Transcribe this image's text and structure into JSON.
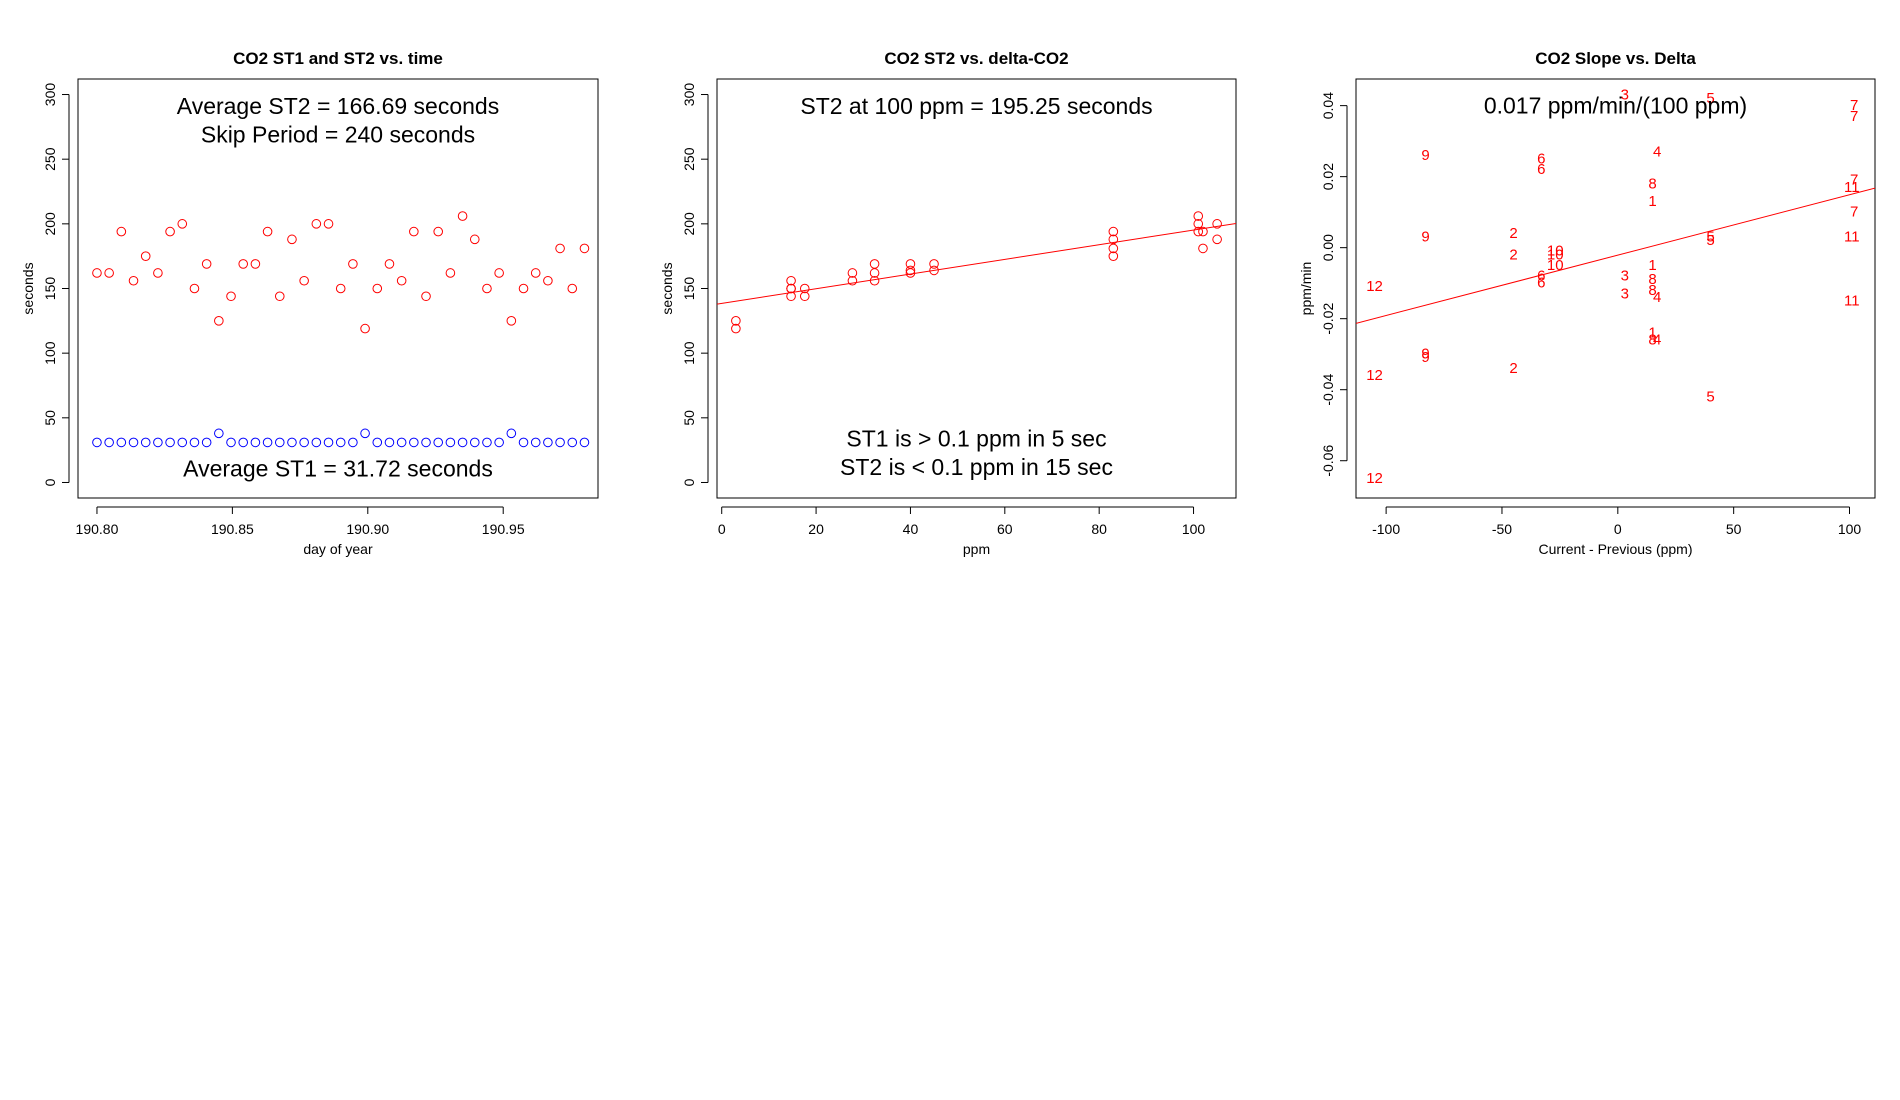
{
  "colors": {
    "st2": "#ff0000",
    "st1": "#0000ff",
    "fit": "#ff0000",
    "axis": "#000000"
  },
  "chart_data": [
    {
      "type": "scatter",
      "title": "CO2 ST1 and ST2 vs. time",
      "xlabel": "day of year",
      "ylabel": "seconds",
      "xlim": [
        190.793,
        190.985
      ],
      "ylim": [
        -12,
        312
      ],
      "xticks": [
        190.8,
        190.85,
        190.9,
        190.95
      ],
      "xtick_labels": [
        "190.80",
        "190.85",
        "190.90",
        "190.95"
      ],
      "yticks": [
        0,
        50,
        100,
        150,
        200,
        250,
        300
      ],
      "ytick_labels": [
        "0",
        "50",
        "100",
        "150",
        "200",
        "250",
        "300"
      ],
      "annotations": [
        {
          "text": "Average ST2 =  166.69  seconds",
          "x": 190.889,
          "y": 291
        },
        {
          "text": "Skip Period =  240  seconds",
          "x": 190.889,
          "y": 269
        },
        {
          "text": "Average ST1 =  31.72  seconds",
          "x": 190.889,
          "y": 11
        }
      ],
      "series": [
        {
          "name": "ST2",
          "color": "#ff0000",
          "x": [
            190.8,
            190.8045,
            190.809,
            190.8135,
            190.818,
            190.8225,
            190.827,
            190.8315,
            190.836,
            190.8405,
            190.845,
            190.8495,
            190.854,
            190.8585,
            190.863,
            190.8675,
            190.872,
            190.8765,
            190.881,
            190.8855,
            190.89,
            190.8945,
            190.899,
            190.9035,
            190.908,
            190.9125,
            190.917,
            190.9215,
            190.926,
            190.9305,
            190.935,
            190.9395,
            190.944,
            190.9485,
            190.953,
            190.9575,
            190.962,
            190.9665,
            190.971,
            190.9755,
            190.98
          ],
          "y": [
            162,
            162,
            194,
            156,
            175,
            162,
            194,
            200,
            150,
            169,
            125,
            144,
            169,
            169,
            194,
            144,
            188,
            156,
            200,
            200,
            150,
            169,
            119,
            150,
            169,
            156,
            194,
            144,
            194,
            162,
            206,
            188,
            150,
            162,
            125,
            150,
            162,
            156,
            181,
            150,
            181
          ]
        },
        {
          "name": "ST1",
          "color": "#0000ff",
          "x": [
            190.8,
            190.8045,
            190.809,
            190.8135,
            190.818,
            190.8225,
            190.827,
            190.8315,
            190.836,
            190.8405,
            190.845,
            190.8495,
            190.854,
            190.8585,
            190.863,
            190.8675,
            190.872,
            190.8765,
            190.881,
            190.8855,
            190.89,
            190.8945,
            190.899,
            190.9035,
            190.908,
            190.9125,
            190.917,
            190.9215,
            190.926,
            190.9305,
            190.935,
            190.9395,
            190.944,
            190.9485,
            190.953,
            190.9575,
            190.962,
            190.9665,
            190.971,
            190.9755,
            190.98
          ],
          "y": [
            31,
            31,
            31,
            31,
            31,
            31,
            31,
            31,
            31,
            31,
            38,
            31,
            31,
            31,
            31,
            31,
            31,
            31,
            31,
            31,
            31,
            31,
            38,
            31,
            31,
            31,
            31,
            31,
            31,
            31,
            31,
            31,
            31,
            31,
            38,
            31,
            31,
            31,
            31,
            31,
            31
          ]
        }
      ]
    },
    {
      "type": "scatter",
      "title": "CO2 ST2 vs. delta-CO2",
      "xlabel": "ppm",
      "ylabel": "seconds",
      "xlim": [
        -1,
        109
      ],
      "ylim": [
        -12,
        312
      ],
      "xticks": [
        0,
        20,
        40,
        60,
        80,
        100
      ],
      "xtick_labels": [
        "0",
        "20",
        "40",
        "60",
        "80",
        "100"
      ],
      "yticks": [
        0,
        50,
        100,
        150,
        200,
        250,
        300
      ],
      "ytick_labels": [
        "0",
        "50",
        "100",
        "150",
        "200",
        "250",
        "300"
      ],
      "annotations": [
        {
          "text": "ST2 at 100 ppm =  195.25  seconds",
          "x": 54,
          "y": 291
        },
        {
          "text": "ST1 is > 0.1 ppm in 5 sec",
          "x": 54,
          "y": 34
        },
        {
          "text": "ST2 is < 0.1 ppm in 15 sec",
          "x": 54,
          "y": 12
        }
      ],
      "fit": {
        "intercept": 138.5,
        "slope": 0.567,
        "color": "#ff0000"
      },
      "series": [
        {
          "name": "ST2",
          "color": "#ff0000",
          "x": [
            3,
            3,
            14.7,
            14.7,
            14.7,
            14.7,
            17.6,
            17.6,
            27.7,
            27.7,
            32.4,
            32.4,
            32.4,
            40,
            40,
            40,
            45,
            45,
            83,
            83,
            83,
            83,
            101,
            101,
            101,
            102,
            102,
            105,
            105
          ],
          "y": [
            125,
            119,
            156,
            150,
            150,
            144,
            150,
            144,
            162,
            156,
            169,
            162,
            156,
            169,
            164,
            162,
            169,
            164,
            194,
            188,
            181,
            175,
            206,
            200,
            194,
            194,
            181,
            200,
            188
          ]
        }
      ]
    },
    {
      "type": "scatter",
      "title": "CO2 Slope vs. Delta",
      "xlabel": "Current - Previous (ppm)",
      "ylabel": "ppm/min",
      "xlim": [
        -113,
        111
      ],
      "ylim": [
        -0.0705,
        0.0475
      ],
      "xticks": [
        -100,
        -50,
        0,
        50,
        100
      ],
      "xtick_labels": [
        "-100",
        "-50",
        "0",
        "50",
        "100"
      ],
      "yticks": [
        -0.06,
        -0.04,
        -0.02,
        0.0,
        0.02,
        0.04
      ],
      "ytick_labels": [
        "-0.06",
        "-0.04",
        "-0.02",
        "0.00",
        "0.02",
        "0.04"
      ],
      "annotations": [
        {
          "text": "0.017  ppm/min/(100 ppm)",
          "x": -1,
          "y": 0.04
        }
      ],
      "fit": {
        "intercept": -0.0021,
        "slope": 0.00017,
        "color": "#ff0000"
      },
      "points": [
        {
          "label": "12",
          "x": -105,
          "y": -0.011
        },
        {
          "label": "12",
          "x": -105,
          "y": -0.036
        },
        {
          "label": "12",
          "x": -105,
          "y": -0.065
        },
        {
          "label": "9",
          "x": -83,
          "y": 0.026
        },
        {
          "label": "9",
          "x": -83,
          "y": 0.003
        },
        {
          "label": "9",
          "x": -83,
          "y": -0.03
        },
        {
          "label": "9",
          "x": -83,
          "y": -0.031
        },
        {
          "label": "2",
          "x": -45,
          "y": 0.004
        },
        {
          "label": "2",
          "x": -45,
          "y": -0.002
        },
        {
          "label": "2",
          "x": -45,
          "y": -0.034
        },
        {
          "label": "6",
          "x": -33,
          "y": 0.025
        },
        {
          "label": "6",
          "x": -33,
          "y": 0.022
        },
        {
          "label": "6",
          "x": -33,
          "y": -0.008
        },
        {
          "label": "6",
          "x": -33,
          "y": -0.01
        },
        {
          "label": "10",
          "x": -27,
          "y": -0.001
        },
        {
          "label": "10",
          "x": -27,
          "y": -0.002
        },
        {
          "label": "10",
          "x": -27,
          "y": -0.005
        },
        {
          "label": "3",
          "x": 3,
          "y": 0.043
        },
        {
          "label": "3",
          "x": 3,
          "y": -0.008
        },
        {
          "label": "3",
          "x": 3,
          "y": -0.013
        },
        {
          "label": "4",
          "x": 17,
          "y": 0.027
        },
        {
          "label": "4",
          "x": 17,
          "y": -0.014
        },
        {
          "label": "4",
          "x": 17,
          "y": -0.026
        },
        {
          "label": "8",
          "x": 15,
          "y": 0.018
        },
        {
          "label": "8",
          "x": 15,
          "y": -0.009
        },
        {
          "label": "8",
          "x": 15,
          "y": -0.012
        },
        {
          "label": "8",
          "x": 15,
          "y": -0.026
        },
        {
          "label": "1",
          "x": 15,
          "y": 0.013
        },
        {
          "label": "1",
          "x": 15,
          "y": -0.005
        },
        {
          "label": "1",
          "x": 15,
          "y": -0.024
        },
        {
          "label": "5",
          "x": 40,
          "y": 0.042
        },
        {
          "label": "5",
          "x": 40,
          "y": 0.003
        },
        {
          "label": "5",
          "x": 40,
          "y": 0.002
        },
        {
          "label": "5",
          "x": 40,
          "y": -0.042
        },
        {
          "label": "7",
          "x": 102,
          "y": 0.04
        },
        {
          "label": "7",
          "x": 102,
          "y": 0.037
        },
        {
          "label": "7",
          "x": 102,
          "y": 0.019
        },
        {
          "label": "7",
          "x": 102,
          "y": 0.01
        },
        {
          "label": "11",
          "x": 101,
          "y": 0.017
        },
        {
          "label": "11",
          "x": 101,
          "y": 0.003
        },
        {
          "label": "11",
          "x": 101,
          "y": -0.015
        }
      ]
    }
  ]
}
